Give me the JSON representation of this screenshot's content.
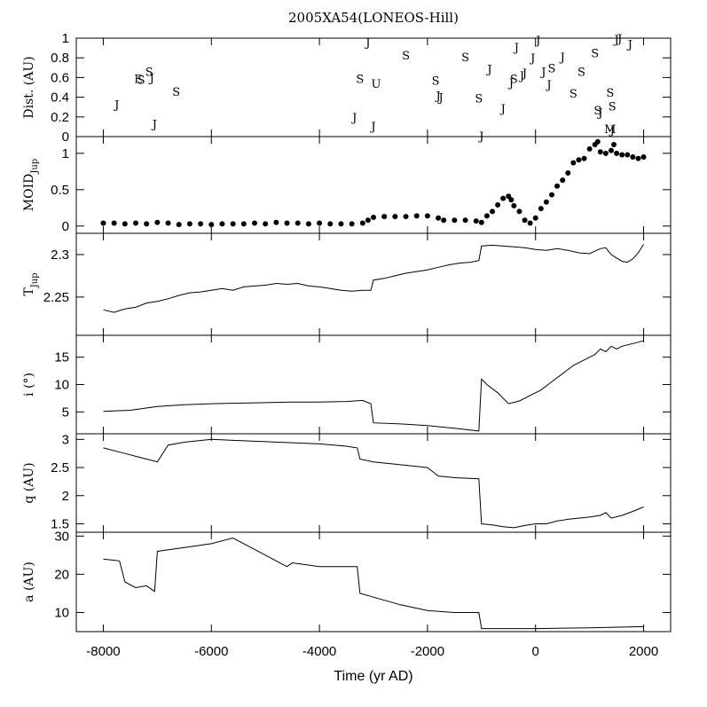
{
  "chart_data": {
    "type": "line",
    "title": "2005XA54(LONEOS-Hill)",
    "xlabel": "Time (yr AD)",
    "xlim": [
      -8500,
      2500
    ],
    "xticks": [
      -8000,
      -6000,
      -4000,
      -2000,
      0,
      2000
    ],
    "xtick_labels": [
      "-8000",
      "-6000",
      "-4000",
      "-2000",
      "0",
      "2000"
    ],
    "panels": [
      {
        "id": "dist",
        "type": "scatter",
        "ylabel": "Dist. (AU)",
        "ylim": [
          0,
          1
        ],
        "yticks": [
          0,
          0.2,
          0.4,
          0.6,
          0.8,
          1
        ],
        "ytick_labels": [
          "0",
          "0.2",
          "0.4",
          "0.6",
          "0.8",
          "1"
        ],
        "markers": [
          {
            "x": -7750,
            "y": 0.33,
            "label": "J"
          },
          {
            "x": -7350,
            "y": 0.59,
            "label": "E"
          },
          {
            "x": -7300,
            "y": 0.58,
            "label": "S"
          },
          {
            "x": -7150,
            "y": 0.66,
            "label": "S"
          },
          {
            "x": -7100,
            "y": 0.6,
            "label": "J"
          },
          {
            "x": -7050,
            "y": 0.13,
            "label": "J"
          },
          {
            "x": -6650,
            "y": 0.46,
            "label": "S"
          },
          {
            "x": -3350,
            "y": 0.2,
            "label": "J"
          },
          {
            "x": -3250,
            "y": 0.59,
            "label": "S"
          },
          {
            "x": -3100,
            "y": 0.96,
            "label": "J"
          },
          {
            "x": -3000,
            "y": 0.11,
            "label": "J"
          },
          {
            "x": -2950,
            "y": 0.54,
            "label": "U"
          },
          {
            "x": -2400,
            "y": 0.83,
            "label": "S"
          },
          {
            "x": -1850,
            "y": 0.57,
            "label": "S"
          },
          {
            "x": -1750,
            "y": 0.4,
            "label": "J"
          },
          {
            "x": -1800,
            "y": 0.42,
            "label": "J"
          },
          {
            "x": -1300,
            "y": 0.81,
            "label": "S"
          },
          {
            "x": -1050,
            "y": 0.39,
            "label": "S"
          },
          {
            "x": -1000,
            "y": 0.01,
            "label": "J"
          },
          {
            "x": -850,
            "y": 0.69,
            "label": "J"
          },
          {
            "x": -600,
            "y": 0.29,
            "label": "J"
          },
          {
            "x": -450,
            "y": 0.55,
            "label": "J"
          },
          {
            "x": -400,
            "y": 0.59,
            "label": "S"
          },
          {
            "x": -350,
            "y": 0.91,
            "label": "J"
          },
          {
            "x": -250,
            "y": 0.62,
            "label": "J"
          },
          {
            "x": -200,
            "y": 0.65,
            "label": "J"
          },
          {
            "x": -50,
            "y": 0.8,
            "label": "J"
          },
          {
            "x": 50,
            "y": 0.98,
            "label": "J"
          },
          {
            "x": 150,
            "y": 0.66,
            "label": "J"
          },
          {
            "x": 250,
            "y": 0.53,
            "label": "J"
          },
          {
            "x": 300,
            "y": 0.7,
            "label": "S"
          },
          {
            "x": 500,
            "y": 0.81,
            "label": "J"
          },
          {
            "x": 700,
            "y": 0.44,
            "label": "S"
          },
          {
            "x": 850,
            "y": 0.66,
            "label": "S"
          },
          {
            "x": 1100,
            "y": 0.85,
            "label": "S"
          },
          {
            "x": 1150,
            "y": 0.27,
            "label": "S"
          },
          {
            "x": 1200,
            "y": 0.25,
            "label": "J"
          },
          {
            "x": 1380,
            "y": 0.45,
            "label": "S"
          },
          {
            "x": 1420,
            "y": 0.31,
            "label": "S"
          },
          {
            "x": 1380,
            "y": 0.08,
            "label": "M"
          },
          {
            "x": 1420,
            "y": 0.07,
            "label": "J"
          },
          {
            "x": 1500,
            "y": 0.99,
            "label": "J"
          },
          {
            "x": 1560,
            "y": 1.0,
            "label": "J"
          },
          {
            "x": 1750,
            "y": 0.94,
            "label": "J"
          }
        ]
      },
      {
        "id": "moid",
        "type": "scatter",
        "ylabel": "MOID",
        "ylabel_sub": "Jup",
        "ylim": [
          -0.1,
          1.23
        ],
        "yticks": [
          0,
          0.5,
          1
        ],
        "ytick_labels": [
          "0",
          "0.5",
          "1"
        ],
        "x": [
          -8000,
          -7800,
          -7600,
          -7400,
          -7200,
          -7000,
          -6800,
          -6600,
          -6400,
          -6200,
          -6000,
          -5800,
          -5600,
          -5400,
          -5200,
          -5000,
          -4800,
          -4600,
          -4400,
          -4200,
          -4000,
          -3800,
          -3600,
          -3400,
          -3200,
          -3100,
          -3000,
          -2800,
          -2600,
          -2400,
          -2200,
          -2000,
          -1800,
          -1700,
          -1500,
          -1300,
          -1100,
          -1000,
          -900,
          -800,
          -700,
          -600,
          -500,
          -450,
          -400,
          -300,
          -200,
          -100,
          0,
          100,
          200,
          300,
          400,
          500,
          600,
          700,
          800,
          900,
          1000,
          1100,
          1150,
          1200,
          1300,
          1400,
          1450,
          1500,
          1600,
          1700,
          1800,
          1900,
          2000
        ],
        "y": [
          0.04,
          0.04,
          0.03,
          0.04,
          0.03,
          0.05,
          0.04,
          0.02,
          0.03,
          0.03,
          0.02,
          0.03,
          0.03,
          0.03,
          0.04,
          0.03,
          0.05,
          0.04,
          0.04,
          0.03,
          0.04,
          0.03,
          0.03,
          0.03,
          0.04,
          0.08,
          0.12,
          0.13,
          0.13,
          0.13,
          0.14,
          0.14,
          0.11,
          0.08,
          0.08,
          0.08,
          0.07,
          0.05,
          0.14,
          0.2,
          0.29,
          0.38,
          0.41,
          0.36,
          0.28,
          0.2,
          0.08,
          0.04,
          0.11,
          0.24,
          0.33,
          0.43,
          0.55,
          0.63,
          0.73,
          0.87,
          0.91,
          0.93,
          1.06,
          1.12,
          1.16,
          1.02,
          1.0,
          1.04,
          1.12,
          1.0,
          0.98,
          0.98,
          0.95,
          0.93,
          0.95
        ]
      },
      {
        "id": "tjup",
        "type": "line",
        "ylabel": "T",
        "ylabel_sub": "Jup",
        "ylim": [
          2.205,
          2.325
        ],
        "yticks": [
          2.25,
          2.3
        ],
        "ytick_labels": [
          "2.25",
          "2.3"
        ],
        "x": [
          -8000,
          -7800,
          -7600,
          -7400,
          -7200,
          -7000,
          -6800,
          -6600,
          -6400,
          -6200,
          -6000,
          -5800,
          -5600,
          -5400,
          -5200,
          -5000,
          -4800,
          -4600,
          -4400,
          -4200,
          -4000,
          -3800,
          -3600,
          -3400,
          -3200,
          -3050,
          -3000,
          -2800,
          -2600,
          -2400,
          -2200,
          -2000,
          -1800,
          -1600,
          -1400,
          -1200,
          -1050,
          -1000,
          -800,
          -600,
          -400,
          -200,
          0,
          200,
          400,
          600,
          800,
          1000,
          1100,
          1200,
          1300,
          1400,
          1500,
          1600,
          1700,
          1800,
          1900,
          2000
        ],
        "y": [
          2.235,
          2.232,
          2.236,
          2.238,
          2.243,
          2.245,
          2.248,
          2.252,
          2.255,
          2.256,
          2.258,
          2.26,
          2.258,
          2.262,
          2.263,
          2.264,
          2.266,
          2.265,
          2.266,
          2.263,
          2.262,
          2.26,
          2.258,
          2.257,
          2.258,
          2.258,
          2.27,
          2.272,
          2.275,
          2.278,
          2.28,
          2.282,
          2.285,
          2.288,
          2.29,
          2.291,
          2.293,
          2.31,
          2.311,
          2.31,
          2.309,
          2.308,
          2.306,
          2.305,
          2.307,
          2.305,
          2.302,
          2.301,
          2.304,
          2.307,
          2.308,
          2.3,
          2.296,
          2.292,
          2.291,
          2.295,
          2.302,
          2.312
        ]
      },
      {
        "id": "incl",
        "type": "line",
        "ylabel": "i (°)",
        "ylim": [
          1,
          19
        ],
        "yticks": [
          5,
          10,
          15
        ],
        "ytick_labels": [
          "5",
          "10",
          "15"
        ],
        "x": [
          -8000,
          -7500,
          -7000,
          -6500,
          -6000,
          -5500,
          -5000,
          -4500,
          -4000,
          -3500,
          -3200,
          -3050,
          -3000,
          -2500,
          -2000,
          -1500,
          -1050,
          -1000,
          -900,
          -700,
          -500,
          -300,
          -100,
          100,
          300,
          500,
          700,
          900,
          1100,
          1200,
          1300,
          1400,
          1500,
          1600,
          1800,
          2000
        ],
        "y": [
          5.1,
          5.3,
          6.0,
          6.3,
          6.5,
          6.6,
          6.7,
          6.8,
          6.8,
          6.9,
          7.1,
          6.5,
          3.0,
          2.8,
          2.5,
          2.0,
          1.5,
          11.0,
          10.0,
          8.5,
          6.5,
          7.0,
          8.0,
          9.0,
          10.5,
          12.0,
          13.5,
          14.5,
          15.5,
          16.5,
          16.0,
          17.0,
          16.5,
          17.0,
          17.5,
          18.0
        ]
      },
      {
        "id": "q",
        "type": "line",
        "ylabel": "q (AU)",
        "ylim": [
          1.35,
          3.1
        ],
        "yticks": [
          1.5,
          2,
          2.5,
          3
        ],
        "ytick_labels": [
          "1.5",
          "2",
          "2.5",
          "3"
        ],
        "x": [
          -8000,
          -7600,
          -7400,
          -7200,
          -7000,
          -6800,
          -6500,
          -6000,
          -5500,
          -5000,
          -4500,
          -4000,
          -3500,
          -3300,
          -3250,
          -3000,
          -2500,
          -2000,
          -1800,
          -1500,
          -1050,
          -1000,
          -800,
          -600,
          -400,
          -200,
          0,
          200,
          400,
          600,
          800,
          1000,
          1200,
          1300,
          1400,
          1600,
          1800,
          2000
        ],
        "y": [
          2.85,
          2.75,
          2.7,
          2.65,
          2.6,
          2.9,
          2.95,
          3.0,
          2.98,
          2.96,
          2.94,
          2.92,
          2.88,
          2.85,
          2.65,
          2.6,
          2.55,
          2.5,
          2.35,
          2.32,
          2.3,
          1.5,
          1.48,
          1.45,
          1.43,
          1.47,
          1.5,
          1.5,
          1.55,
          1.58,
          1.6,
          1.62,
          1.65,
          1.7,
          1.6,
          1.65,
          1.72,
          1.8
        ]
      },
      {
        "id": "a",
        "type": "line",
        "ylabel": "a (AU)",
        "ylim": [
          5,
          31
        ],
        "yticks": [
          10,
          20,
          30
        ],
        "ytick_labels": [
          "10",
          "20",
          "30"
        ],
        "x": [
          -8000,
          -7700,
          -7600,
          -7400,
          -7200,
          -7050,
          -7000,
          -6500,
          -6000,
          -5600,
          -5400,
          -5000,
          -4600,
          -4500,
          -4000,
          -3500,
          -3300,
          -3250,
          -3000,
          -2500,
          -2000,
          -1500,
          -1050,
          -1000,
          0,
          1000,
          2000
        ],
        "y": [
          24,
          23.5,
          18,
          16.5,
          17,
          15.5,
          26,
          27,
          28,
          29.5,
          28,
          25,
          22,
          23,
          22,
          22,
          22,
          15,
          14,
          12,
          10.5,
          10,
          10,
          5.8,
          5.8,
          6.0,
          6.3
        ]
      }
    ]
  }
}
